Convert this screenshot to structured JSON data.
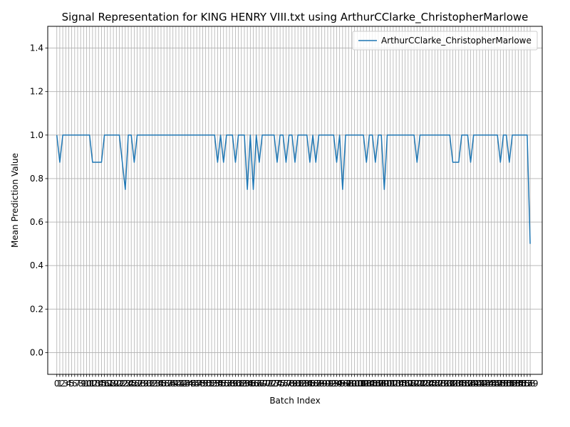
{
  "chart_data": {
    "type": "line",
    "title": "Signal Representation for KING HENRY VIII.txt using ArthurCClarke_ChristopherMarlowe",
    "xlabel": "Batch Index",
    "ylabel": "Mean Prediction Value",
    "xlim": [
      -3.05,
      163.05
    ],
    "ylim": [
      -0.1,
      1.5
    ],
    "yticks": [
      0.0,
      0.2,
      0.4,
      0.6,
      0.8,
      1.0,
      1.2,
      1.4
    ],
    "grid": true,
    "legend_position": "top-right",
    "series": [
      {
        "name": "ArthurCClarke_ChristopherMarlowe",
        "color": "#1f77b4",
        "values": [
          1.0,
          0.875,
          1.0,
          1.0,
          1.0,
          1.0,
          1.0,
          1.0,
          1.0,
          1.0,
          1.0,
          1.0,
          0.875,
          0.875,
          0.875,
          0.875,
          1.0,
          1.0,
          1.0,
          1.0,
          1.0,
          1.0,
          0.875,
          0.75,
          1.0,
          1.0,
          0.875,
          1.0,
          1.0,
          1.0,
          1.0,
          1.0,
          1.0,
          1.0,
          1.0,
          1.0,
          1.0,
          1.0,
          1.0,
          1.0,
          1.0,
          1.0,
          1.0,
          1.0,
          1.0,
          1.0,
          1.0,
          1.0,
          1.0,
          1.0,
          1.0,
          1.0,
          1.0,
          1.0,
          0.875,
          1.0,
          0.875,
          1.0,
          1.0,
          1.0,
          0.875,
          1.0,
          1.0,
          1.0,
          0.75,
          1.0,
          0.75,
          1.0,
          0.875,
          1.0,
          1.0,
          1.0,
          1.0,
          1.0,
          0.875,
          1.0,
          1.0,
          0.875,
          1.0,
          1.0,
          0.875,
          1.0,
          1.0,
          1.0,
          1.0,
          0.875,
          1.0,
          0.875,
          1.0,
          1.0,
          1.0,
          1.0,
          1.0,
          1.0,
          0.875,
          1.0,
          0.75,
          1.0,
          1.0,
          1.0,
          1.0,
          1.0,
          1.0,
          1.0,
          0.875,
          1.0,
          1.0,
          0.875,
          1.0,
          1.0,
          0.75,
          1.0,
          1.0,
          1.0,
          1.0,
          1.0,
          1.0,
          1.0,
          1.0,
          1.0,
          1.0,
          0.875,
          1.0,
          1.0,
          1.0,
          1.0,
          1.0,
          1.0,
          1.0,
          1.0,
          1.0,
          1.0,
          1.0,
          0.875,
          0.875,
          0.875,
          1.0,
          1.0,
          1.0,
          0.875,
          1.0,
          1.0,
          1.0,
          1.0,
          1.0,
          1.0,
          1.0,
          1.0,
          1.0,
          0.875,
          1.0,
          1.0,
          0.875,
          1.0,
          1.0,
          1.0,
          1.0,
          1.0,
          1.0,
          0.5
        ]
      }
    ]
  }
}
